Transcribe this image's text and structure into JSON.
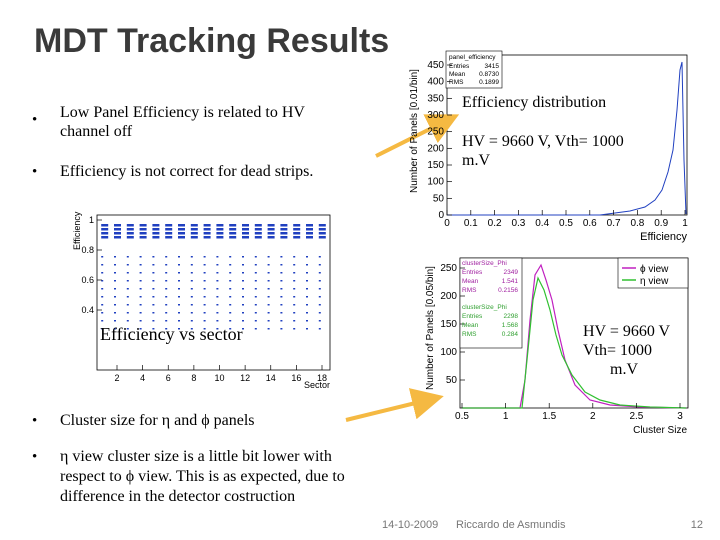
{
  "title": "MDT Tracking Results",
  "top_bullets": [
    "Low Panel Efficiency is related to HV channel  off",
    "Efficiency is not correct for dead strips."
  ],
  "plot_efficiency": {
    "stats_title": "panel_efficiency",
    "stats": [
      [
        "Entries",
        "3415"
      ],
      [
        "Mean",
        "0.8730"
      ],
      [
        "RMS",
        "0.1899"
      ]
    ],
    "yticks": [
      "0",
      "50",
      "100",
      "150",
      "200",
      "250",
      "300",
      "350",
      "400",
      "450"
    ],
    "xticks": [
      "0",
      "0.1",
      "0.2",
      "0.3",
      "0.4",
      "0.5",
      "0.6",
      "0.7",
      "0.8",
      "0.9",
      "1"
    ],
    "xlabel": "Efficiency",
    "ylabel": "Number of Panels [0.01/bin]",
    "caption": "Efficiency distribution",
    "note": "HV = 9660 V,  Vth= 1000 m.V"
  },
  "plot_sector": {
    "yticks": [
      "0.4",
      "0.6",
      "0.8",
      "1"
    ],
    "xticks": [
      "2",
      "4",
      "6",
      "8",
      "10",
      "12",
      "14",
      "16",
      "18"
    ],
    "xlabel": "Sector",
    "ylabel": "Efficiency",
    "caption": "Efficiency vs sector"
  },
  "plot_cluster": {
    "boxes": [
      {
        "title": "clusterSize_Phi",
        "stats": [
          [
            "Entries",
            "2349"
          ],
          [
            "Mean",
            "1.541"
          ],
          [
            "RMS",
            "0.2156"
          ]
        ]
      },
      {
        "title": "clusterSize_Phi",
        "stats": [
          [
            "Entries",
            "2298"
          ],
          [
            "Mean",
            "1.568"
          ],
          [
            "RMS",
            "0.284"
          ]
        ]
      }
    ],
    "legend": [
      "ϕ view",
      "η view"
    ],
    "yticks": [
      "50",
      "100",
      "150",
      "200",
      "250"
    ],
    "xticks": [
      "0.5",
      "1",
      "1.5",
      "2",
      "2.5",
      "3"
    ],
    "xlabel": "Cluster Size",
    "ylabel": "Number of Panels [0.05/bin]",
    "note": "HV = 9660 V Vth= 1000 m.V"
  },
  "bottom_bullets": [
    "Cluster size for η  and ϕ panels",
    "η  view cluster size is a little bit lower with respect to  ϕ view. This is as expected, due to difference in the detector costruction"
  ],
  "footer": {
    "date": "14-10-2009",
    "author": "Riccardo de Asmundis",
    "page": "12"
  }
}
